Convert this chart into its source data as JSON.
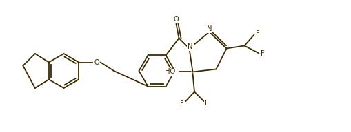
{
  "bg_color": "#ffffff",
  "bond_color": "#3d2b00",
  "label_color": "#3d2b00",
  "figsize": [
    5.09,
    1.92
  ],
  "dpi": 100,
  "line_width": 1.3,
  "font_size": 7.2,
  "xlim": [
    0,
    10.18
  ],
  "ylim": [
    0,
    3.84
  ]
}
